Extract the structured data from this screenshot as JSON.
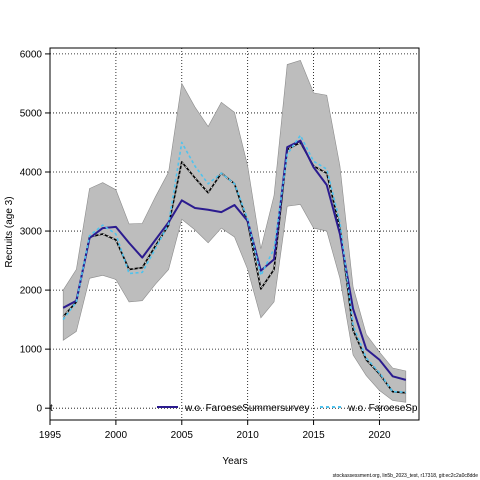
{
  "chart_data": {
    "type": "line",
    "xlabel": "Years",
    "ylabel": "Recruits (age 3)",
    "xlim": [
      1995,
      2023
    ],
    "ylim": [
      -200,
      6100
    ],
    "xticks": [
      1995,
      2000,
      2005,
      2010,
      2015,
      2020
    ],
    "yticks": [
      0,
      1000,
      2000,
      3000,
      4000,
      5000,
      6000
    ],
    "grid": true,
    "legend_position": "bottom",
    "footer": "stockassessment.org, lin5b_2023_test, r17318, git:ec2c2a0c8dde",
    "x": [
      1996,
      1997,
      1998,
      1999,
      2000,
      2001,
      2002,
      2003,
      2004,
      2005,
      2006,
      2007,
      2008,
      2009,
      2010,
      2011,
      2012,
      2013,
      2014,
      2015,
      2016,
      2017,
      2018,
      2019,
      2020,
      2021,
      2022
    ],
    "band": {
      "upper": [
        2000,
        2350,
        3720,
        3820,
        3700,
        3120,
        3130,
        3580,
        4000,
        5500,
        5100,
        4770,
        5180,
        5010,
        4100,
        2700,
        3600,
        5820,
        5890,
        5340,
        5300,
        4100,
        2050,
        1250,
        950,
        680,
        630
      ],
      "lower": [
        1150,
        1300,
        2200,
        2250,
        2180,
        1800,
        1820,
        2100,
        2350,
        3200,
        3020,
        2800,
        3050,
        2900,
        2350,
        1530,
        1800,
        3420,
        3450,
        3050,
        3000,
        2200,
        900,
        550,
        300,
        130,
        100
      ]
    },
    "series": [
      {
        "name": "",
        "color": "#000000",
        "style": "solid",
        "values": [
          1550,
          1800,
          2900,
          2950,
          2850,
          2350,
          2380,
          2750,
          3100,
          4170,
          3900,
          3650,
          3980,
          3800,
          3150,
          2020,
          2350,
          4380,
          4500,
          4100,
          3980,
          3050,
          1320,
          820,
          580,
          280,
          260
        ]
      },
      {
        "name": "w.o. FaroeseSummersurvey",
        "color": "#2b1b8f",
        "style": "solid",
        "values": [
          1700,
          1820,
          2880,
          3050,
          3070,
          2800,
          2550,
          2850,
          3150,
          3520,
          3390,
          3360,
          3320,
          3440,
          3170,
          2330,
          2520,
          4420,
          4530,
          4080,
          3780,
          2950,
          1680,
          1000,
          820,
          540,
          480
        ]
      },
      {
        "name": "w.o. FaroeseSp",
        "color": "#4fc3ee",
        "style": "dashed",
        "values": [
          1500,
          1800,
          2920,
          3100,
          2950,
          2280,
          2300,
          2700,
          3120,
          4500,
          4100,
          3800,
          3980,
          3800,
          3200,
          2250,
          2700,
          4300,
          4620,
          4180,
          4050,
          3150,
          1400,
          850,
          600,
          280,
          270
        ]
      }
    ],
    "legend_labels": {
      "first": "t",
      "second": "w.o. FaroeseSummersurvey",
      "third": "w.o. FaroeseSp"
    }
  }
}
